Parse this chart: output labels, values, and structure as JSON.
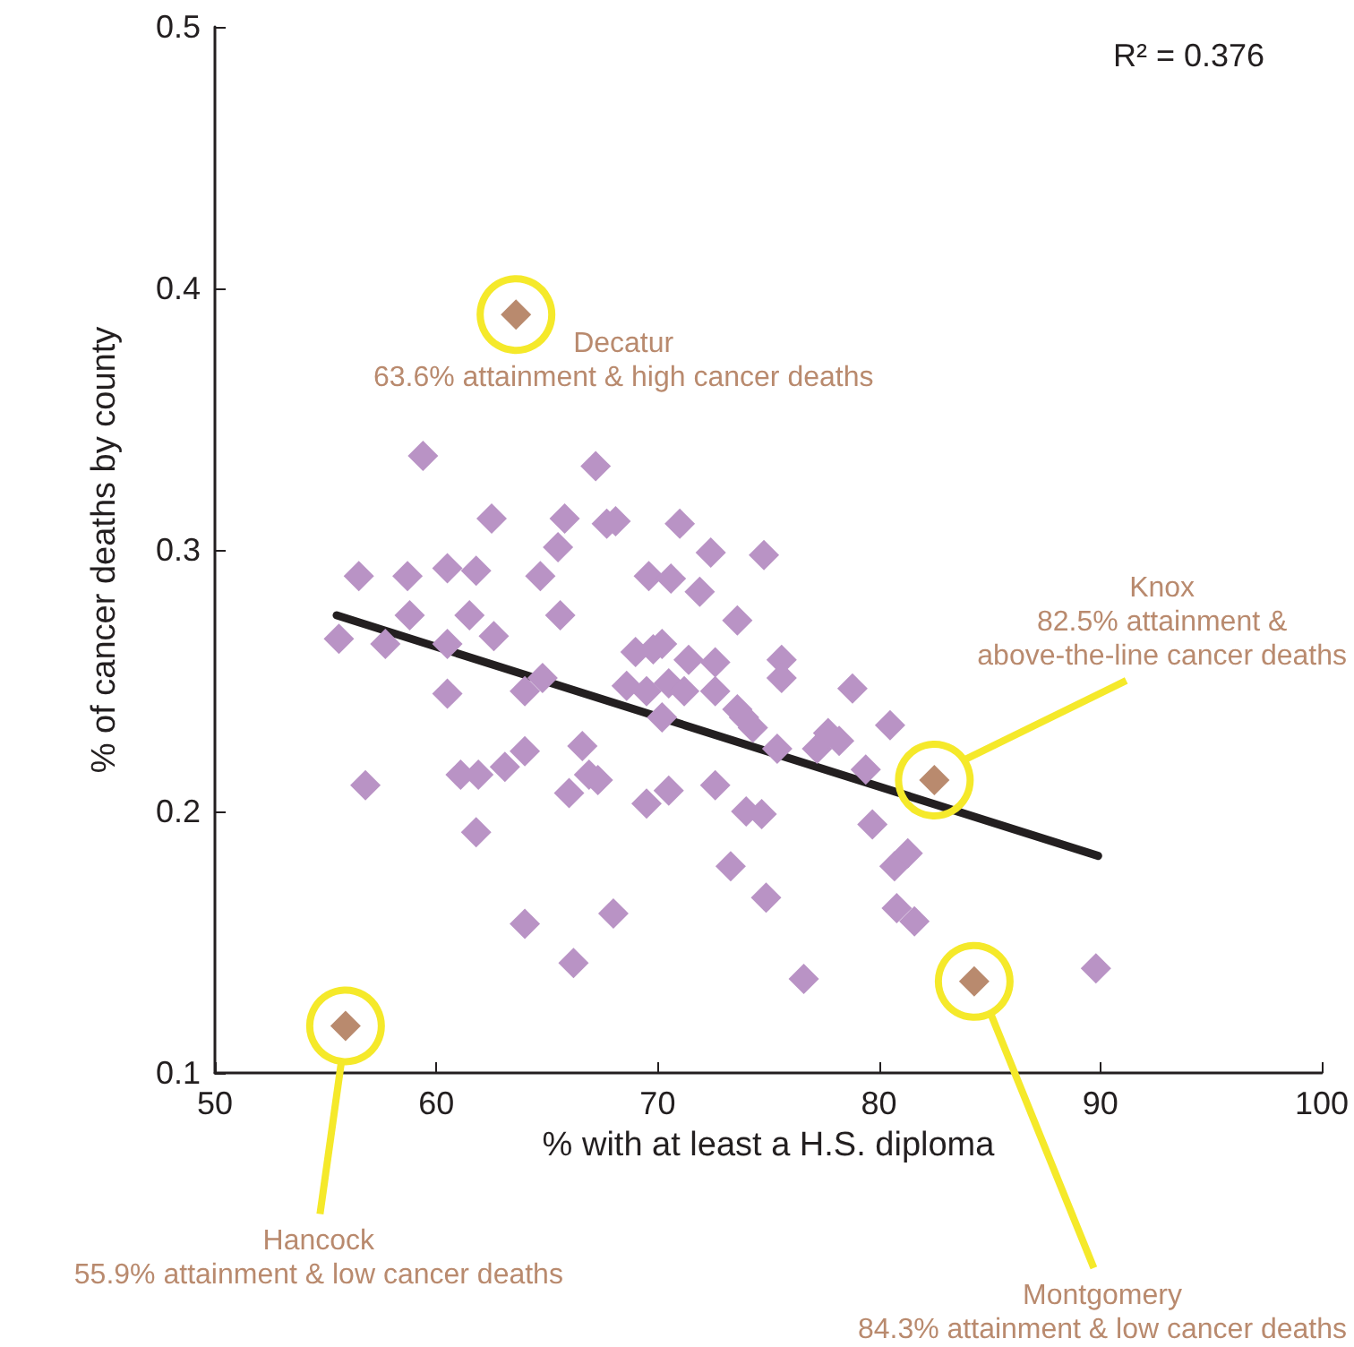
{
  "chart_data": {
    "type": "scatter",
    "xlabel": "% with at least a H.S. diploma",
    "ylabel": "% of cancer deaths by county",
    "xlim": [
      50,
      100
    ],
    "xticks": [
      50,
      60,
      70,
      80,
      90,
      100
    ],
    "ylim": [
      0.1,
      0.5
    ],
    "yticks": [
      0.1,
      0.2,
      0.3,
      0.4,
      0.5
    ],
    "grid": false,
    "marker": "diamond",
    "series": [
      {
        "color": "#b993c5",
        "x": [
          55.6,
          56.5,
          56.8,
          57.7,
          58.8,
          58.7,
          59.4,
          60.5,
          60.5,
          60.5,
          61.1,
          61.8,
          61.8,
          61.9,
          61.5,
          62.5,
          62.6,
          63.1,
          64.0,
          64.0,
          64.0,
          64.7,
          64.8,
          65.5,
          65.8,
          65.6,
          66.0,
          66.2,
          66.6,
          66.9,
          67.2,
          67.3,
          67.7,
          68.0,
          68.1,
          68.6,
          69.0,
          69.5,
          69.5,
          69.6,
          69.8,
          70.2,
          70.2,
          70.5,
          70.5,
          70.6,
          71.0,
          71.2,
          71.4,
          71.9,
          72.4,
          72.6,
          72.6,
          72.6,
          73.3,
          73.6,
          73.6,
          73.9,
          74.0,
          74.3,
          74.7,
          74.9,
          74.8,
          75.4,
          75.6,
          75.6,
          76.6,
          77.2,
          77.7,
          78.2,
          78.8,
          79.4,
          79.7,
          80.5,
          80.8,
          80.7,
          81.3,
          81.6,
          89.8
        ],
        "values": [
          0.266,
          0.29,
          0.21,
          0.264,
          0.275,
          0.29,
          0.336,
          0.245,
          0.264,
          0.293,
          0.214,
          0.192,
          0.292,
          0.214,
          0.275,
          0.312,
          0.267,
          0.217,
          0.246,
          0.157,
          0.223,
          0.29,
          0.251,
          0.301,
          0.312,
          0.275,
          0.207,
          0.142,
          0.225,
          0.214,
          0.332,
          0.212,
          0.31,
          0.161,
          0.311,
          0.248,
          0.261,
          0.203,
          0.246,
          0.29,
          0.262,
          0.264,
          0.236,
          0.208,
          0.249,
          0.289,
          0.31,
          0.246,
          0.258,
          0.284,
          0.299,
          0.257,
          0.246,
          0.21,
          0.179,
          0.273,
          0.239,
          0.236,
          0.2,
          0.232,
          0.199,
          0.167,
          0.298,
          0.224,
          0.258,
          0.251,
          0.136,
          0.224,
          0.23,
          0.227,
          0.247,
          0.216,
          0.195,
          0.233,
          0.163,
          0.179,
          0.184,
          0.158,
          0.14
        ]
      },
      {
        "color": "#b98a6e",
        "x": [
          63.6,
          82.5,
          55.9,
          84.3
        ],
        "values": [
          0.39,
          0.212,
          0.118,
          0.135
        ]
      },
      {
        "type": "line",
        "marker": "none",
        "color": "#231f20",
        "x": [
          55.5,
          89.9
        ],
        "values": [
          0.275,
          0.183
        ]
      }
    ],
    "annotations": [
      "R² = 0.376",
      {
        "text": "Decatur\n63.6% attainment & high cancer deaths",
        "x": 63.6,
        "y": 0.39
      },
      "Knox\n82.5% attainment &\nabove-the-line cancer deaths",
      "Hancock\n55.9% attainment & low cancer deaths",
      "Montgomery\n84.3% attainment & low cancer deaths"
    ]
  }
}
